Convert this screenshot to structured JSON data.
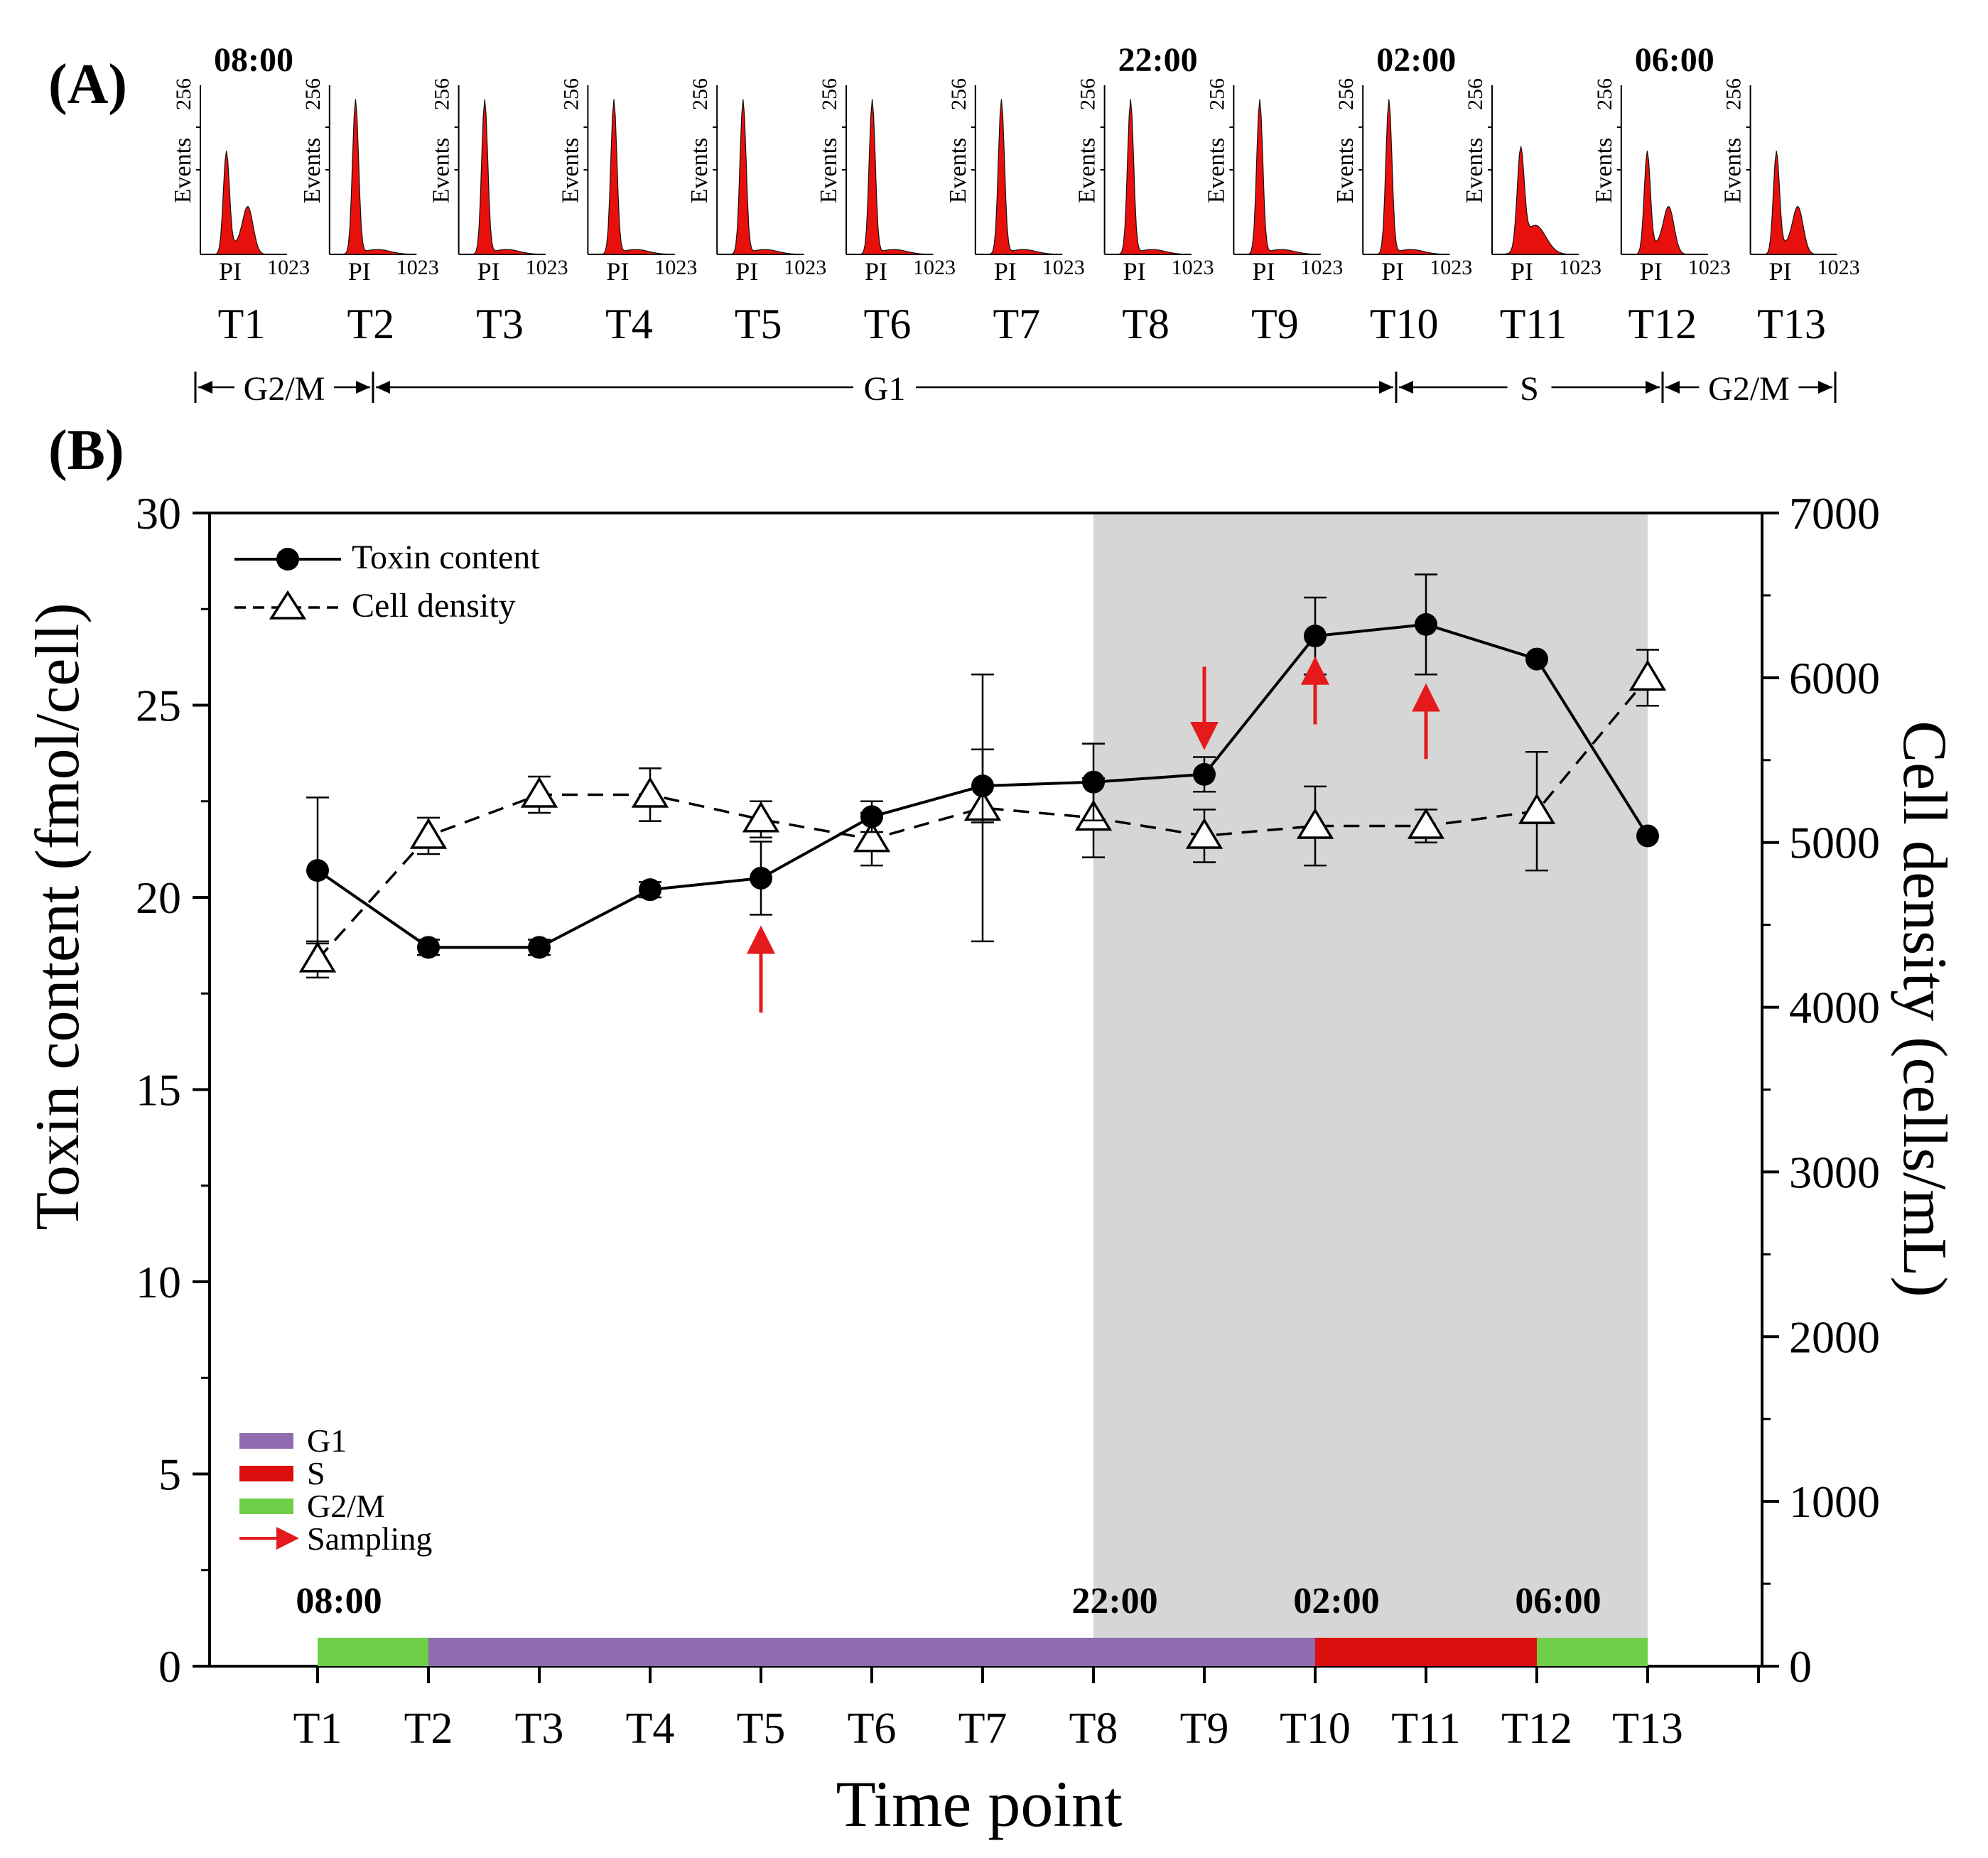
{
  "panel_labels": {
    "a": "(A)",
    "b": "(B)"
  },
  "histograms": {
    "y_top_label": "256",
    "y_axis_label": "Events",
    "x_axis_label": "PI",
    "x_max_label": "1023",
    "time_labels": [
      {
        "index": 0,
        "text": "08:00"
      },
      {
        "index": 7,
        "text": "22:00"
      },
      {
        "index": 9,
        "text": "02:00"
      },
      {
        "index": 11,
        "text": "06:00"
      }
    ],
    "panels": [
      {
        "label": "T1",
        "shape": "bimodal_g2"
      },
      {
        "label": "T2",
        "shape": "g1"
      },
      {
        "label": "T3",
        "shape": "g1"
      },
      {
        "label": "T4",
        "shape": "g1"
      },
      {
        "label": "T5",
        "shape": "g1"
      },
      {
        "label": "T6",
        "shape": "g1"
      },
      {
        "label": "T7",
        "shape": "g1"
      },
      {
        "label": "T8",
        "shape": "g1"
      },
      {
        "label": "T9",
        "shape": "g1"
      },
      {
        "label": "T10",
        "shape": "g1"
      },
      {
        "label": "T11",
        "shape": "s_phase"
      },
      {
        "label": "T12",
        "shape": "bimodal_g2"
      },
      {
        "label": "T13",
        "shape": "bimodal_g2"
      }
    ],
    "phase_spans": [
      {
        "label": "G2/M",
        "from": 0,
        "to": 1
      },
      {
        "label": "G1",
        "from": 1,
        "to": 9
      },
      {
        "label": "S",
        "from": 9,
        "to": 11
      },
      {
        "label": "G2/M",
        "from": 11,
        "to": 12
      }
    ]
  },
  "colors": {
    "histogram_fill": "#e8100c",
    "g1": "#8f6bb0",
    "s": "#dc0f0f",
    "g2m": "#6fcf48",
    "arrow": "#e41a1c",
    "dark_shade": "#d6d6d6"
  },
  "chart_data": {
    "type": "line",
    "title": "",
    "xlabel": "Time point",
    "ylabel": "Toxin content (fmol/cell)",
    "y2label": "Cell density (cells/mL)",
    "categories": [
      "T1",
      "T2",
      "T3",
      "T4",
      "T5",
      "T6",
      "T7",
      "T8",
      "T9",
      "T10",
      "T11",
      "T12",
      "T13"
    ],
    "ylim": [
      0,
      30
    ],
    "yticks": [
      0,
      5,
      10,
      15,
      20,
      25,
      30
    ],
    "y2lim": [
      0,
      7000
    ],
    "y2ticks": [
      0,
      1000,
      2000,
      3000,
      4000,
      5000,
      6000,
      7000
    ],
    "series": [
      {
        "name": "Toxin content",
        "axis": "left",
        "marker": "filled-circle",
        "line": "solid",
        "values": [
          20.7,
          18.7,
          18.7,
          20.2,
          20.5,
          22.1,
          22.9,
          23.0,
          23.2,
          26.8,
          27.1,
          26.2,
          21.6
        ],
        "errors": [
          1.9,
          0.2,
          0.2,
          0.2,
          0.95,
          0.4,
          0.95,
          1.0,
          0.45,
          1.0,
          1.3,
          0,
          0
        ]
      },
      {
        "name": "Cell density",
        "axis": "right",
        "marker": "open-triangle",
        "line": "dashed",
        "values": [
          4290,
          5040,
          5290,
          5290,
          5140,
          5020,
          5210,
          5150,
          5040,
          5100,
          5100,
          5190,
          6000
        ],
        "errors": [
          110,
          110,
          110,
          160,
          110,
          160,
          810,
          240,
          160,
          240,
          100,
          360,
          170
        ]
      }
    ],
    "dark_period": {
      "from": "T8",
      "to": "T13"
    },
    "phase_bar": [
      {
        "phase": "G2/M",
        "from": "T1",
        "to": "T2"
      },
      {
        "phase": "G1",
        "from": "T2",
        "to": "T10"
      },
      {
        "phase": "S",
        "from": "T10",
        "to": "T12"
      },
      {
        "phase": "G2/M",
        "from": "T12",
        "to": "T13"
      }
    ],
    "clock_labels": [
      {
        "at": "T1",
        "text": "08:00"
      },
      {
        "at": "T8",
        "text": "22:00"
      },
      {
        "at": "T10",
        "text": "02:00"
      },
      {
        "at": "T12",
        "text": "06:00"
      }
    ],
    "sampling_arrows": [
      {
        "at": "T5",
        "direction": "up",
        "from_y": 17.0,
        "to_y": 18.9
      },
      {
        "at": "T9",
        "direction": "down",
        "from_y": 26.0,
        "to_y": 24.2
      },
      {
        "at": "T10",
        "direction": "up",
        "from_y": 24.5,
        "to_y": 25.9
      },
      {
        "at": "T11",
        "direction": "up",
        "from_y": 23.6,
        "to_y": 25.2
      }
    ],
    "legend": {
      "position": "top-left",
      "entries": [
        "Toxin content",
        "Cell density"
      ]
    },
    "phase_legend": {
      "position": "bottom-left",
      "entries": [
        {
          "label": "G1",
          "color": "#8f6bb0"
        },
        {
          "label": "S",
          "color": "#dc0f0f"
        },
        {
          "label": "G2/M",
          "color": "#6fcf48"
        },
        {
          "label": "Sampling",
          "color": "#e41a1c"
        }
      ]
    }
  }
}
